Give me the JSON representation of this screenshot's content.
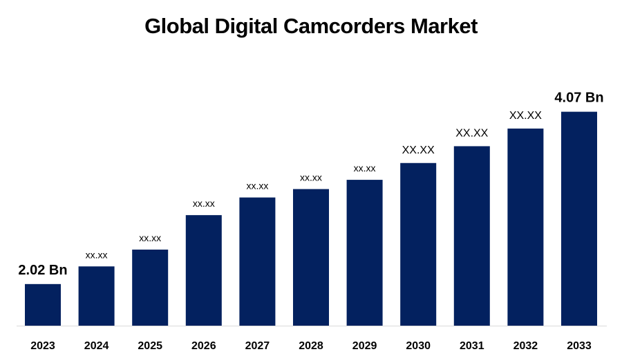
{
  "chart_data": {
    "type": "bar",
    "title": "Global Digital Camcorders Market",
    "xlabel": "",
    "ylabel": "",
    "categories": [
      "2023",
      "2024",
      "2025",
      "2026",
      "2027",
      "2028",
      "2029",
      "2030",
      "2031",
      "2032",
      "2033"
    ],
    "values": [
      2.02,
      2.23,
      2.43,
      2.84,
      3.05,
      3.15,
      3.26,
      3.46,
      3.66,
      3.87,
      4.07
    ],
    "data_labels": [
      "2.02 Bn",
      "xx.xx",
      "xx.xx",
      "xx.xx",
      "xx.xx",
      "xx.xx",
      "xx.xx",
      "XX.XX",
      "XX.XX",
      "XX.XX",
      "4.07 Bn"
    ],
    "ylim": [
      1.525,
      4.33
    ],
    "y_axis_visible": false,
    "grid": false,
    "bar_color": "#03215F",
    "axis_line_color": "#D9D9D9"
  }
}
